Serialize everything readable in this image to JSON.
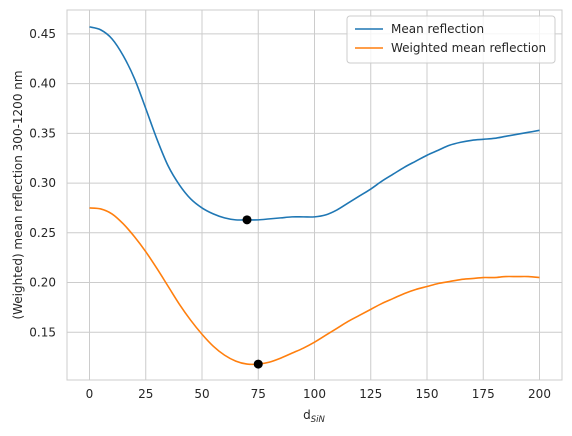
{
  "chart_data": {
    "type": "line",
    "title": "",
    "xlabel": "d",
    "xlabel_sub": "SiN",
    "ylabel": "(Weighted) mean reflection 300-1200 nm",
    "xlim": [
      -10,
      210
    ],
    "ylim": [
      0.102,
      0.474
    ],
    "xticks": [
      0,
      25,
      50,
      75,
      100,
      125,
      150,
      175,
      200
    ],
    "xtick_labels": [
      "0",
      "25",
      "50",
      "75",
      "100",
      "125",
      "150",
      "175",
      "200"
    ],
    "yticks": [
      0.15,
      0.2,
      0.25,
      0.3,
      0.35,
      0.4,
      0.45
    ],
    "ytick_labels": [
      "0.15",
      "0.20",
      "0.25",
      "0.30",
      "0.35",
      "0.40",
      "0.45"
    ],
    "grid": true,
    "legend_position": "top-right",
    "series": [
      {
        "name": "Mean reflection",
        "color": "#1f77b4",
        "x": [
          0,
          5,
          10,
          15,
          20,
          25,
          30,
          35,
          40,
          45,
          50,
          55,
          60,
          65,
          70,
          75,
          80,
          85,
          90,
          95,
          100,
          105,
          110,
          115,
          120,
          125,
          130,
          135,
          140,
          145,
          150,
          155,
          160,
          165,
          170,
          175,
          180,
          185,
          190,
          195,
          200
        ],
        "y": [
          0.457,
          0.454,
          0.445,
          0.428,
          0.405,
          0.375,
          0.344,
          0.317,
          0.298,
          0.284,
          0.275,
          0.269,
          0.265,
          0.263,
          0.263,
          0.263,
          0.264,
          0.265,
          0.266,
          0.266,
          0.266,
          0.268,
          0.273,
          0.28,
          0.287,
          0.294,
          0.302,
          0.309,
          0.316,
          0.322,
          0.328,
          0.333,
          0.338,
          0.341,
          0.343,
          0.344,
          0.345,
          0.347,
          0.349,
          0.351,
          0.353
        ]
      },
      {
        "name": "Weighted mean reflection",
        "color": "#ff7f0e",
        "x": [
          0,
          5,
          10,
          15,
          20,
          25,
          30,
          35,
          40,
          45,
          50,
          55,
          60,
          65,
          70,
          75,
          80,
          85,
          90,
          95,
          100,
          105,
          110,
          115,
          120,
          125,
          130,
          135,
          140,
          145,
          150,
          155,
          160,
          165,
          170,
          175,
          180,
          185,
          190,
          195,
          200
        ],
        "y": [
          0.275,
          0.274,
          0.269,
          0.259,
          0.246,
          0.231,
          0.214,
          0.196,
          0.178,
          0.162,
          0.148,
          0.136,
          0.127,
          0.121,
          0.118,
          0.118,
          0.12,
          0.124,
          0.129,
          0.134,
          0.14,
          0.147,
          0.154,
          0.161,
          0.167,
          0.173,
          0.179,
          0.184,
          0.189,
          0.193,
          0.196,
          0.199,
          0.201,
          0.203,
          0.204,
          0.205,
          0.205,
          0.206,
          0.206,
          0.206,
          0.205
        ]
      }
    ],
    "markers": [
      {
        "x": 70,
        "y": 0.263,
        "color": "#000000"
      },
      {
        "x": 75,
        "y": 0.118,
        "color": "#000000"
      }
    ]
  }
}
